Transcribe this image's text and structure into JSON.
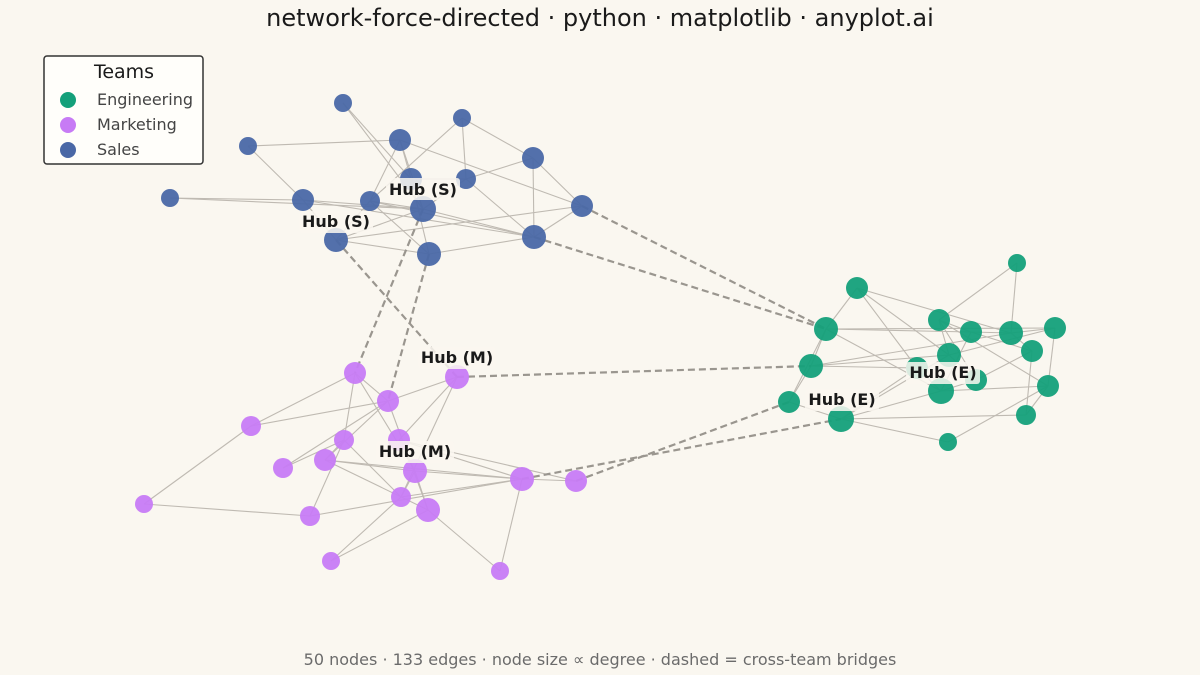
{
  "title": "network-force-directed · python · matplotlib · anyplot.ai",
  "caption": "50 nodes · 133 edges · node size ∝ degree · dashed = cross-team bridges",
  "legend": {
    "title": "Teams",
    "items": [
      {
        "label": "Engineering",
        "color": "#14A07A"
      },
      {
        "label": "Marketing",
        "color": "#C77BF5"
      },
      {
        "label": "Sales",
        "color": "#4A68A6"
      }
    ]
  },
  "hub_labels": [
    "Hub (S)",
    "Hub (S)",
    "Hub (M)",
    "Hub (M)",
    "Hub (E)",
    "Hub (E)"
  ]
}
